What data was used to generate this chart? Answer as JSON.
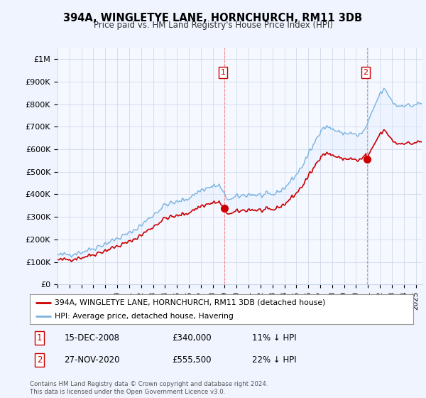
{
  "title": "394A, WINGLETYE LANE, HORNCHURCH, RM11 3DB",
  "subtitle": "Price paid vs. HM Land Registry's House Price Index (HPI)",
  "ylabel_ticks": [
    "£0",
    "£100K",
    "£200K",
    "£300K",
    "£400K",
    "£500K",
    "£600K",
    "£700K",
    "£800K",
    "£900K",
    "£1M"
  ],
  "ytick_values": [
    0,
    100000,
    200000,
    300000,
    400000,
    500000,
    600000,
    700000,
    800000,
    900000,
    1000000
  ],
  "ylim": [
    0,
    1050000
  ],
  "xlim_start": 1995.0,
  "xlim_end": 2025.5,
  "hpi_color": "#7ab3e0",
  "hpi_fill_color": "#ddeeff",
  "price_color": "#cc0000",
  "annotation_color": "#cc0000",
  "background_color": "#f0f4ff",
  "plot_bg_color": "#f5f8ff",
  "grid_color": "#c8d4e8",
  "legend_box_color": "#ffffff",
  "transaction1_x": 2008.96,
  "transaction1_y": 340000,
  "transaction2_x": 2020.9,
  "transaction2_y": 555500,
  "annotation1_label": "1",
  "annotation2_label": "2",
  "legend_line1": "394A, WINGLETYE LANE, HORNCHURCH, RM11 3DB (detached house)",
  "legend_line2": "HPI: Average price, detached house, Havering",
  "note1_num": "1",
  "note1_date": "15-DEC-2008",
  "note1_price": "£340,000",
  "note1_hpi": "11% ↓ HPI",
  "note2_num": "2",
  "note2_date": "27-NOV-2020",
  "note2_price": "£555,500",
  "note2_hpi": "22% ↓ HPI",
  "footer": "Contains HM Land Registry data © Crown copyright and database right 2024.\nThis data is licensed under the Open Government Licence v3.0."
}
